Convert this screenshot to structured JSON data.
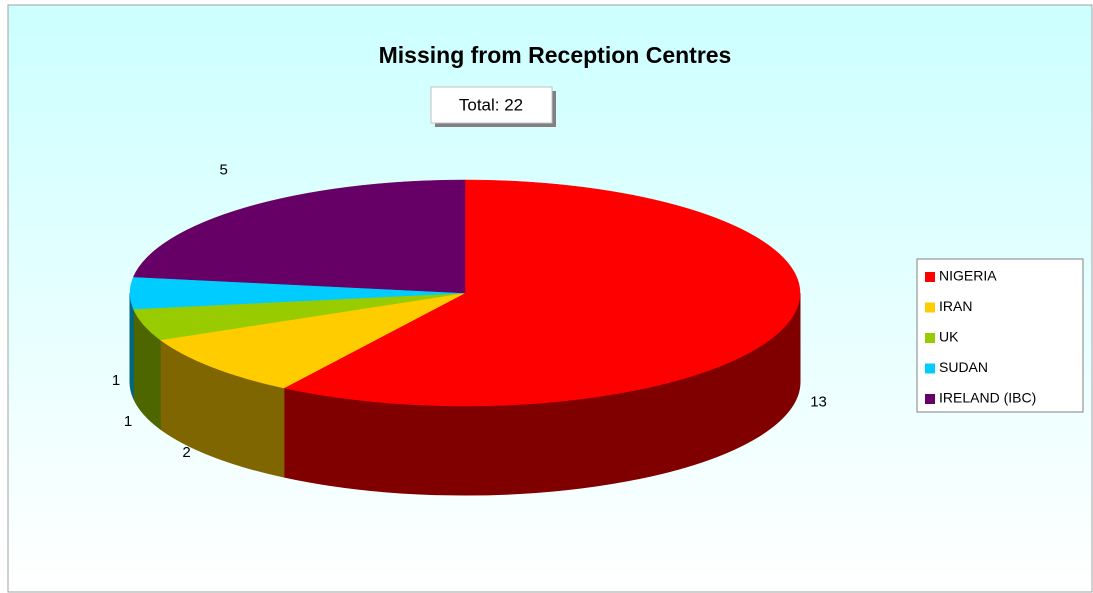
{
  "chart_data": {
    "type": "pie3d",
    "title": "Missing from Reception Centres",
    "annotation": "Total: 22",
    "categories": [
      "NIGERIA",
      "IRAN",
      "UK",
      "SUDAN",
      "IRELAND (IBC)"
    ],
    "values": [
      13,
      2,
      1,
      1,
      5
    ],
    "colors": [
      "#ff0000",
      "#ffcc00",
      "#99cc00",
      "#00ccff",
      "#660066"
    ],
    "legend": "right"
  }
}
